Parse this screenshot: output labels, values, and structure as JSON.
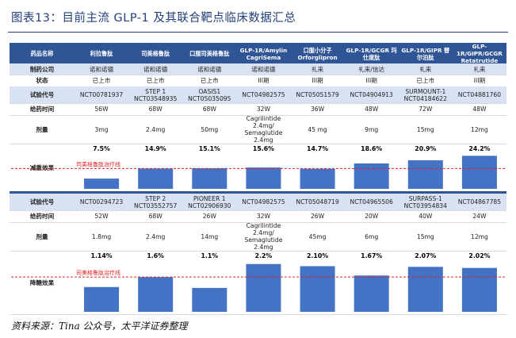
{
  "title": "图表13：目前主流 GLP-1 及其联合靶点临床数据汇总",
  "source": "资料来源：Tina 公众号，太平洋证券整理",
  "header": {
    "label": "药品名称",
    "drugs": [
      "利拉鲁肽",
      "司美格鲁肽",
      "口服司美格鲁肽",
      "GLP-1R/Amylin CagriSema",
      "口服小分子 Orforglipron",
      "GLP-1R/GCGR 玛仕度肽",
      "GLP-1R/GIPR 替尔泊肽",
      "GLP-1R/GIPR/GCGR Retatrutide"
    ]
  },
  "company": {
    "label": "制药公司",
    "values": [
      "诺和诺德",
      "诺和诺德",
      "诺和诺德",
      "诺和诺德",
      "礼来",
      "礼来/信达",
      "礼来",
      "礼来"
    ]
  },
  "status": {
    "label": "状态",
    "values": [
      "已上市",
      "已上市",
      "已上市",
      "III期",
      "III期",
      "III期",
      "已上市",
      "III期"
    ]
  },
  "trial1": {
    "label": "试验代号",
    "values": [
      "NCT00781937",
      "STEP 1 NCT03548935",
      "OASIS1 NCT05035095",
      "NCT04982575",
      "NCT05051579",
      "NCT04904913",
      "SURMOUNT-1 NCT04184622",
      "NCT04881760"
    ]
  },
  "time1": {
    "label": "给药时间",
    "values": [
      "56W",
      "68W",
      "68W",
      "32W",
      "36W",
      "48W",
      "72W",
      "48W"
    ]
  },
  "dose1": {
    "label": "剂量",
    "values": [
      "3mg",
      "2.4mg",
      "50mg",
      "Cagrilintide 2.4mg/ Semaglutide 2.4mg",
      "45 mg",
      "9mg",
      "15mg",
      "12mg"
    ]
  },
  "chart_data": [
    {
      "type": "bar",
      "title": "减重效果",
      "categories": [
        "利拉鲁肽",
        "司美格鲁肽",
        "口服司美格鲁肽",
        "CagriSema",
        "Orforglipron",
        "玛仕度肽",
        "替尔泊肽",
        "Retatrutide"
      ],
      "values": [
        7.5,
        14.9,
        15.1,
        15.6,
        14.7,
        18.6,
        20.9,
        24.2
      ],
      "value_labels": [
        "7.5%",
        "14.9%",
        "15.1%",
        "15.6%",
        "14.7%",
        "18.6%",
        "20.9%",
        "24.2%"
      ],
      "reference_line": {
        "label": "司美格鲁肽治疗线",
        "value": 14.9
      },
      "ylim": [
        0,
        25
      ]
    },
    {
      "type": "bar",
      "title": "降糖效果",
      "categories": [
        "利拉鲁肽",
        "司美格鲁肽",
        "口服司美格鲁肽",
        "CagriSema",
        "Orforglipron",
        "玛仕度肽",
        "替尔泊肽",
        "Retatrutide"
      ],
      "values": [
        1.14,
        1.6,
        1.1,
        2.2,
        2.1,
        1.67,
        2.07,
        2.02
      ],
      "value_labels": [
        "1.14%",
        "1.6%",
        "1.1%",
        "2.2%",
        "2.10%",
        "1.67%",
        "2.07%",
        "2.02%"
      ],
      "reference_line": {
        "label": "司美格鲁肽治疗线",
        "value": 1.6
      },
      "ylim": [
        0,
        2.3
      ]
    }
  ],
  "trial2": {
    "label": "试验代号",
    "values": [
      "NCT00294723",
      "STEP 2 NCT03552757",
      "PIONEER 1 NCT02906930",
      "NCT04982575",
      "NCT05048719",
      "NCT04965506",
      "SURPASS-1 NCT03954834",
      "NCT04867785"
    ]
  },
  "time2": {
    "label": "给药时间",
    "values": [
      "52W",
      "68W",
      "26W",
      "32W",
      "26W",
      "20W",
      "40W",
      "24W"
    ]
  },
  "dose2": {
    "label": "剂量",
    "values": [
      "1.8mg",
      "2.4mg",
      "14mg",
      "Cagrilintide 2.4mg/ Semaglutide 2.4mg",
      "45mg",
      "6mg",
      "15mg",
      "12mg"
    ]
  },
  "colors": {
    "bar": "#4472c4",
    "header": "#2f5597",
    "shade": "#d9e2f3",
    "refline": "#e02020"
  }
}
